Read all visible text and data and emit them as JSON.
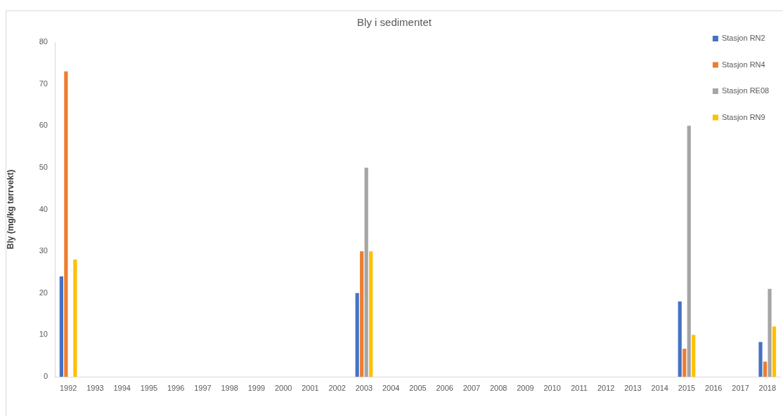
{
  "chart_data": {
    "type": "bar",
    "title": "Bly i sedimentet",
    "ylabel": "Bly (mg/kg tørrvekt)",
    "categories": [
      "1992",
      "1993",
      "1994",
      "1995",
      "1996",
      "1997",
      "1998",
      "1999",
      "2000",
      "2001",
      "2002",
      "2003",
      "2004",
      "2005",
      "2006",
      "2007",
      "2008",
      "2009",
      "2010",
      "2011",
      "2012",
      "2013",
      "2014",
      "2015",
      "2016",
      "2017",
      "2018"
    ],
    "series": [
      {
        "name": "Stasjon RN2",
        "color": "#4472c4",
        "values": [
          24,
          null,
          null,
          null,
          null,
          null,
          null,
          null,
          null,
          null,
          null,
          20,
          null,
          null,
          null,
          null,
          null,
          null,
          null,
          null,
          null,
          null,
          null,
          18,
          null,
          null,
          8.3
        ]
      },
      {
        "name": "Stasjon RN4",
        "color": "#ed7d31",
        "values": [
          73,
          null,
          null,
          null,
          null,
          null,
          null,
          null,
          null,
          null,
          null,
          30,
          null,
          null,
          null,
          null,
          null,
          null,
          null,
          null,
          null,
          null,
          null,
          6.7,
          null,
          null,
          3.6
        ]
      },
      {
        "name": "Stasjon RE08",
        "color": "#a5a5a5",
        "values": [
          null,
          null,
          null,
          null,
          null,
          null,
          null,
          null,
          null,
          null,
          null,
          50,
          null,
          null,
          null,
          null,
          null,
          null,
          null,
          null,
          null,
          null,
          null,
          60,
          null,
          null,
          21
        ]
      },
      {
        "name": "Stasjon RN9",
        "color": "#ffc000",
        "values": [
          28,
          null,
          null,
          null,
          null,
          null,
          null,
          null,
          null,
          null,
          null,
          30,
          null,
          null,
          null,
          null,
          null,
          null,
          null,
          null,
          null,
          null,
          null,
          10,
          null,
          null,
          12
        ]
      }
    ],
    "ylim": [
      0,
      80
    ],
    "yticks": [
      0,
      10,
      20,
      30,
      40,
      50,
      60,
      70,
      80
    ],
    "grid": false,
    "legend": "top right"
  }
}
